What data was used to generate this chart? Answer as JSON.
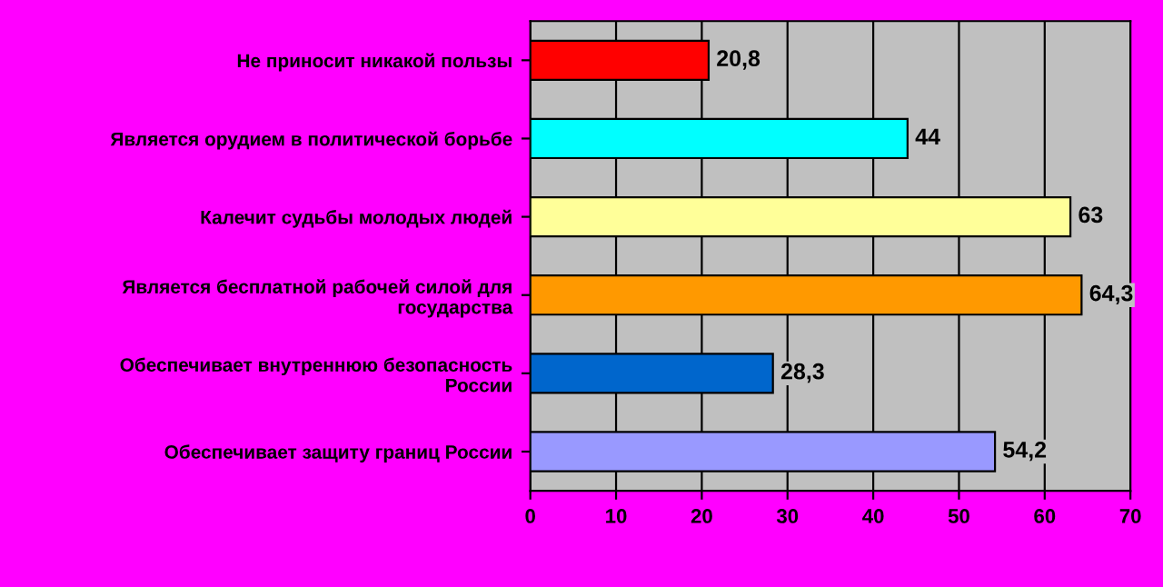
{
  "chart_data": {
    "type": "bar",
    "orientation": "horizontal",
    "categories": [
      "Не приносит никакой пользы",
      "Является орудием в политической борьбе",
      "Калечит судьбы молодых людей",
      "Является бесплатной рабочей силой для государства",
      "Обеспечивает внутреннюю безопасность России",
      "Обеспечивает защиту границ России"
    ],
    "values": [
      20.8,
      44,
      63,
      64.3,
      28.3,
      54.2
    ],
    "value_labels": [
      "20,8",
      "44",
      "63",
      "64,3",
      "28,3",
      "54,2"
    ],
    "colors": [
      "#ff0000",
      "#00ffff",
      "#ffff99",
      "#ff9900",
      "#0066cc",
      "#9999ff"
    ],
    "xlim": [
      0,
      70
    ],
    "xticks": [
      0,
      10,
      20,
      30,
      40,
      50,
      60,
      70
    ],
    "grid": "x"
  }
}
